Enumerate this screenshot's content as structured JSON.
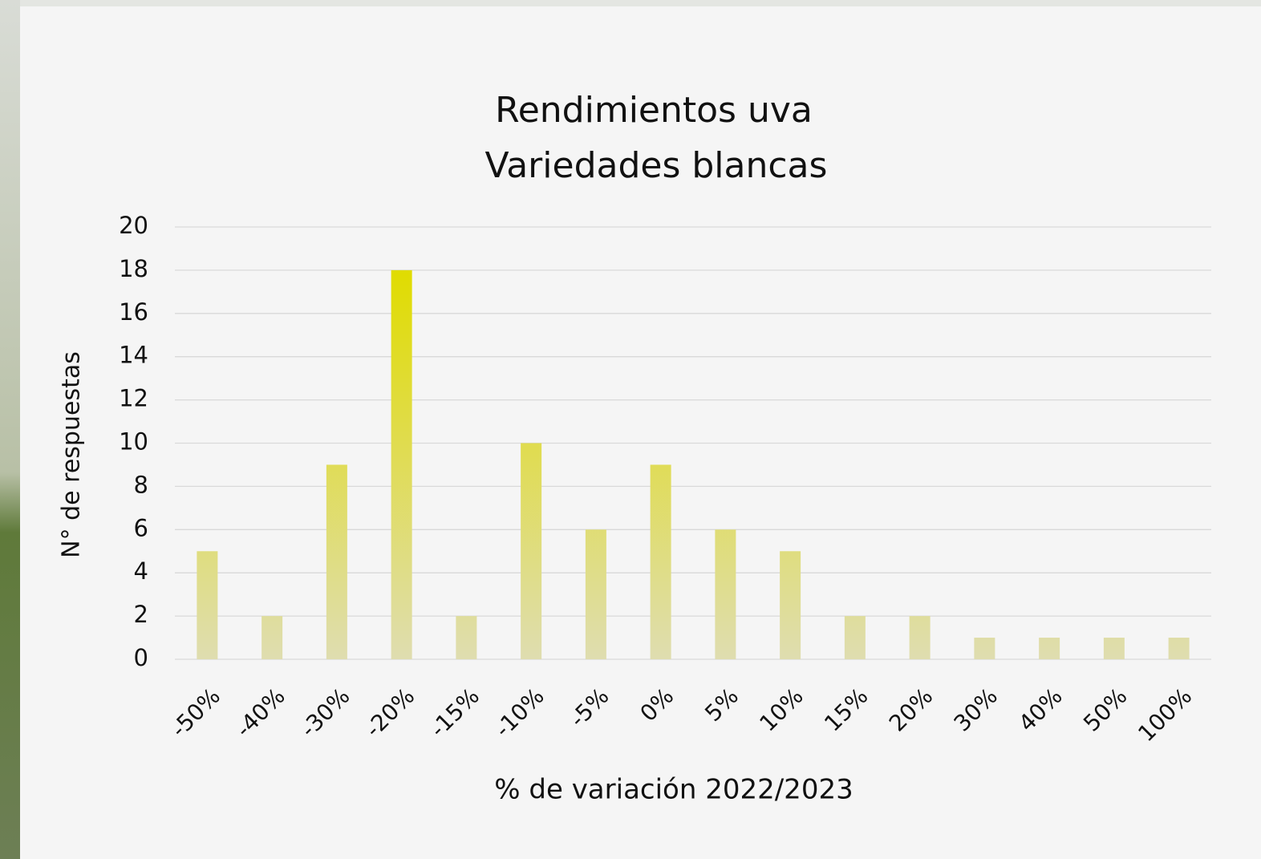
{
  "chart_data": {
    "type": "bar",
    "title": [
      "Rendimientos uva",
      "Variedades blancas"
    ],
    "x_label": "% de variación 2022/2023",
    "y_label": "N° de respuestas",
    "categories": [
      "-50%",
      "-40%",
      "-30%",
      "-20%",
      "-15%",
      "-10%",
      "-5%",
      "0%",
      "5%",
      "10%",
      "15%",
      "20%",
      "30%",
      "40%",
      "50%",
      "100%"
    ],
    "values": [
      5,
      2,
      9,
      18,
      2,
      10,
      6,
      9,
      6,
      5,
      2,
      2,
      1,
      1,
      1,
      1
    ],
    "gradient_colors": [
      "#e0dc00",
      "#dfddb0"
    ],
    "ylim": [
      0,
      20
    ],
    "yticks": [
      0,
      2,
      4,
      6,
      8,
      10,
      12,
      14,
      16,
      18,
      20
    ],
    "grid": true
  }
}
